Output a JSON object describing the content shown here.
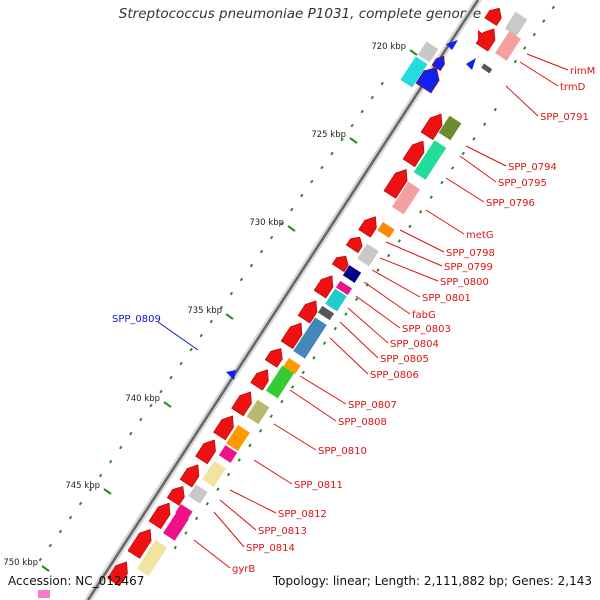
{
  "title": "Streptococcus pneumoniae P1031, complete genome",
  "accession": "Accession: NC_012467",
  "topology": "Topology: linear; Length: 2,111,882 bp; Genes: 2,143",
  "colors": {
    "label": "#dd1111",
    "feature_label": "#1111cc",
    "tick": "#2a8a2a",
    "backbone": "#666666"
  },
  "ticks": [
    {
      "label": "720 kbp"
    },
    {
      "label": "725 kbp"
    },
    {
      "label": "730 kbp"
    },
    {
      "label": "735 kbp"
    },
    {
      "label": "740 kbp"
    },
    {
      "label": "745 kbp"
    },
    {
      "label": "750 kbp"
    }
  ],
  "gene_labels": [
    {
      "text": "rimM"
    },
    {
      "text": "trmD"
    },
    {
      "text": "SPP_0791"
    },
    {
      "text": "SPP_0794"
    },
    {
      "text": "SPP_0795"
    },
    {
      "text": "SPP_0796"
    },
    {
      "text": "metG"
    },
    {
      "text": "SPP_0798"
    },
    {
      "text": "SPP_0799"
    },
    {
      "text": "SPP_0800"
    },
    {
      "text": "SPP_0801"
    },
    {
      "text": "fabG"
    },
    {
      "text": "SPP_0803"
    },
    {
      "text": "SPP_0804"
    },
    {
      "text": "SPP_0805"
    },
    {
      "text": "SPP_0806"
    },
    {
      "text": "SPP_0807"
    },
    {
      "text": "SPP_0808"
    },
    {
      "text": "SPP_0810"
    },
    {
      "text": "SPP_0811"
    },
    {
      "text": "SPP_0812"
    },
    {
      "text": "SPP_0813"
    },
    {
      "text": "SPP_0814"
    },
    {
      "text": "gyrB"
    }
  ],
  "feature_labels": [
    {
      "text": "SPP_0809"
    }
  ]
}
